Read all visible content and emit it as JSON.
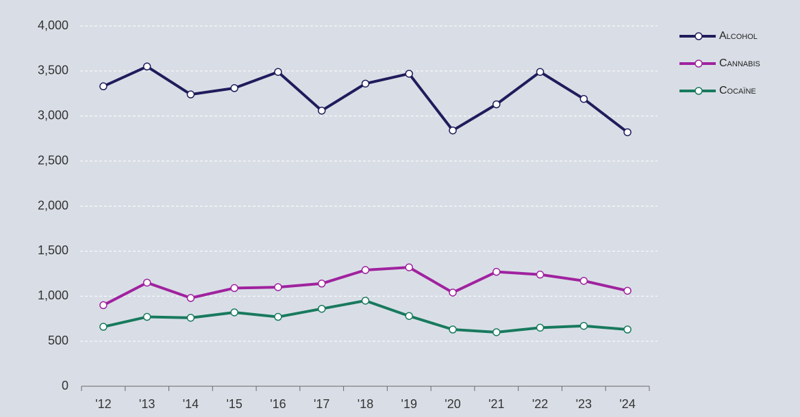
{
  "chart_data": {
    "type": "line",
    "categories": [
      "'12",
      "'13",
      "'14",
      "'15",
      "'16",
      "'17",
      "'18",
      "'19",
      "'20",
      "'21",
      "'22",
      "'23",
      "'24"
    ],
    "series": [
      {
        "name": "Alcohol",
        "color": "#1f1c5c",
        "values": [
          3330,
          3550,
          3240,
          3310,
          3490,
          3060,
          3360,
          3470,
          2840,
          3130,
          3490,
          3190,
          2820
        ]
      },
      {
        "name": "Cannabis",
        "color": "#a0229f",
        "values": [
          900,
          1150,
          980,
          1090,
          1100,
          1140,
          1290,
          1320,
          1040,
          1270,
          1240,
          1170,
          1060
        ]
      },
      {
        "name": "Cocaïne",
        "color": "#187a5e",
        "values": [
          660,
          770,
          760,
          820,
          770,
          860,
          950,
          780,
          630,
          600,
          650,
          670,
          630
        ]
      }
    ],
    "ylim": [
      0,
      4000
    ],
    "yticks": [
      0,
      {
        "value": 500,
        "label": "500"
      },
      {
        "value": 1000,
        "label": "1,000"
      },
      {
        "value": 1500,
        "label": "1,500"
      },
      {
        "value": 2000,
        "label": "2,000"
      },
      {
        "value": 2500,
        "label": "2,500"
      },
      {
        "value": 3000,
        "label": "3,000"
      },
      {
        "value": 3500,
        "label": "3,500"
      },
      {
        "value": 4000,
        "label": "4,000"
      }
    ],
    "grid": true,
    "legend": "top-right"
  }
}
